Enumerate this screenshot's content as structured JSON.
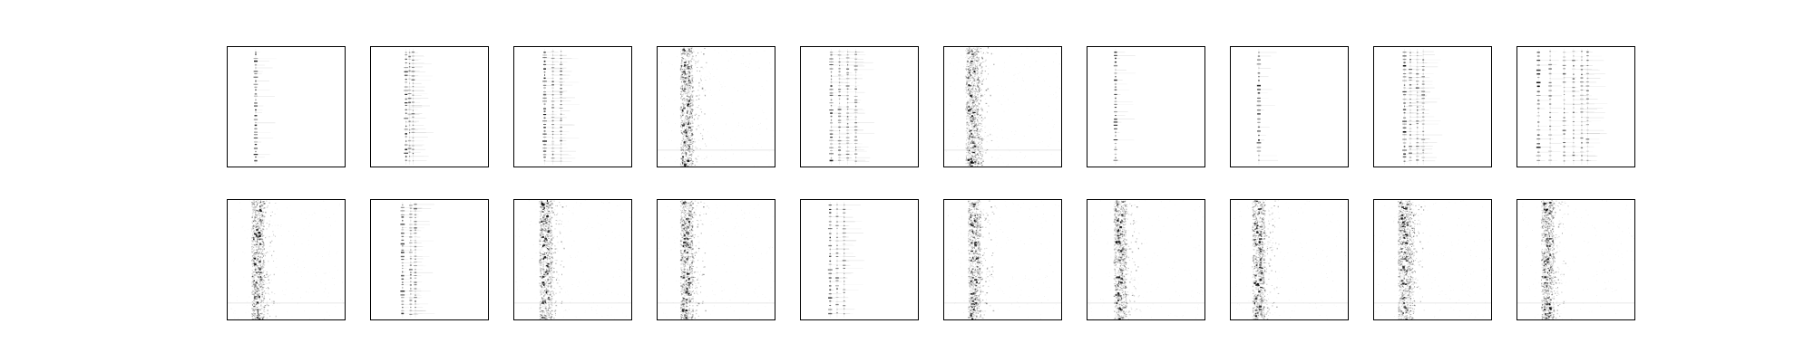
{
  "chart_data": {
    "type": "heatmap",
    "layout": {
      "rows": 2,
      "cols": 10
    },
    "axes": {
      "ticks": false,
      "grid": false,
      "frame": true
    },
    "colors": {
      "frame": "#000000",
      "background": "#ffffff",
      "ink": "#000000"
    },
    "colormap": "gray_r",
    "panels": [
      {
        "row": 0,
        "col": 0,
        "style": "sparse",
        "columns": [
          0.24
        ],
        "seed": 11
      },
      {
        "row": 0,
        "col": 1,
        "style": "sparse",
        "columns": [
          0.3,
          0.33,
          0.36
        ],
        "seed": 12
      },
      {
        "row": 0,
        "col": 2,
        "style": "sparse",
        "columns": [
          0.26,
          0.33,
          0.4
        ],
        "seed": 13
      },
      {
        "row": 0,
        "col": 3,
        "style": "dense",
        "columns": [
          0.23
        ],
        "seed": 14
      },
      {
        "row": 0,
        "col": 4,
        "style": "sparse",
        "columns": [
          0.26,
          0.33,
          0.4,
          0.47
        ],
        "seed": 15
      },
      {
        "row": 0,
        "col": 5,
        "style": "dense",
        "columns": [
          0.22,
          0.3
        ],
        "seed": 16
      },
      {
        "row": 0,
        "col": 6,
        "style": "sparse",
        "columns": [
          0.24
        ],
        "seed": 17
      },
      {
        "row": 0,
        "col": 7,
        "style": "sparse",
        "columns": [
          0.24
        ],
        "seed": 18
      },
      {
        "row": 0,
        "col": 8,
        "style": "sparse",
        "columns": [
          0.26,
          0.31,
          0.37,
          0.42
        ],
        "seed": 19
      },
      {
        "row": 0,
        "col": 9,
        "style": "sparse",
        "columns": [
          0.18,
          0.28,
          0.4,
          0.48,
          0.55,
          0.6
        ],
        "seed": 20
      },
      {
        "row": 1,
        "col": 0,
        "style": "dense",
        "columns": [
          0.24
        ],
        "seed": 21
      },
      {
        "row": 1,
        "col": 1,
        "style": "sparse",
        "columns": [
          0.27,
          0.34,
          0.38
        ],
        "seed": 22
      },
      {
        "row": 1,
        "col": 2,
        "style": "dense",
        "columns": [
          0.25
        ],
        "seed": 23
      },
      {
        "row": 1,
        "col": 3,
        "style": "dense",
        "columns": [
          0.23
        ],
        "seed": 24
      },
      {
        "row": 1,
        "col": 4,
        "style": "sparse",
        "columns": [
          0.25,
          0.31,
          0.37
        ],
        "seed": 25
      },
      {
        "row": 1,
        "col": 5,
        "style": "dense",
        "columns": [
          0.24
        ],
        "seed": 26
      },
      {
        "row": 1,
        "col": 6,
        "style": "dense",
        "columns": [
          0.26
        ],
        "seed": 27
      },
      {
        "row": 1,
        "col": 7,
        "style": "dense",
        "columns": [
          0.22
        ],
        "seed": 28
      },
      {
        "row": 1,
        "col": 8,
        "style": "dense",
        "columns": [
          0.24,
          0.32
        ],
        "seed": 29
      },
      {
        "row": 1,
        "col": 9,
        "style": "dense",
        "columns": [
          0.24
        ],
        "seed": 30
      }
    ]
  }
}
